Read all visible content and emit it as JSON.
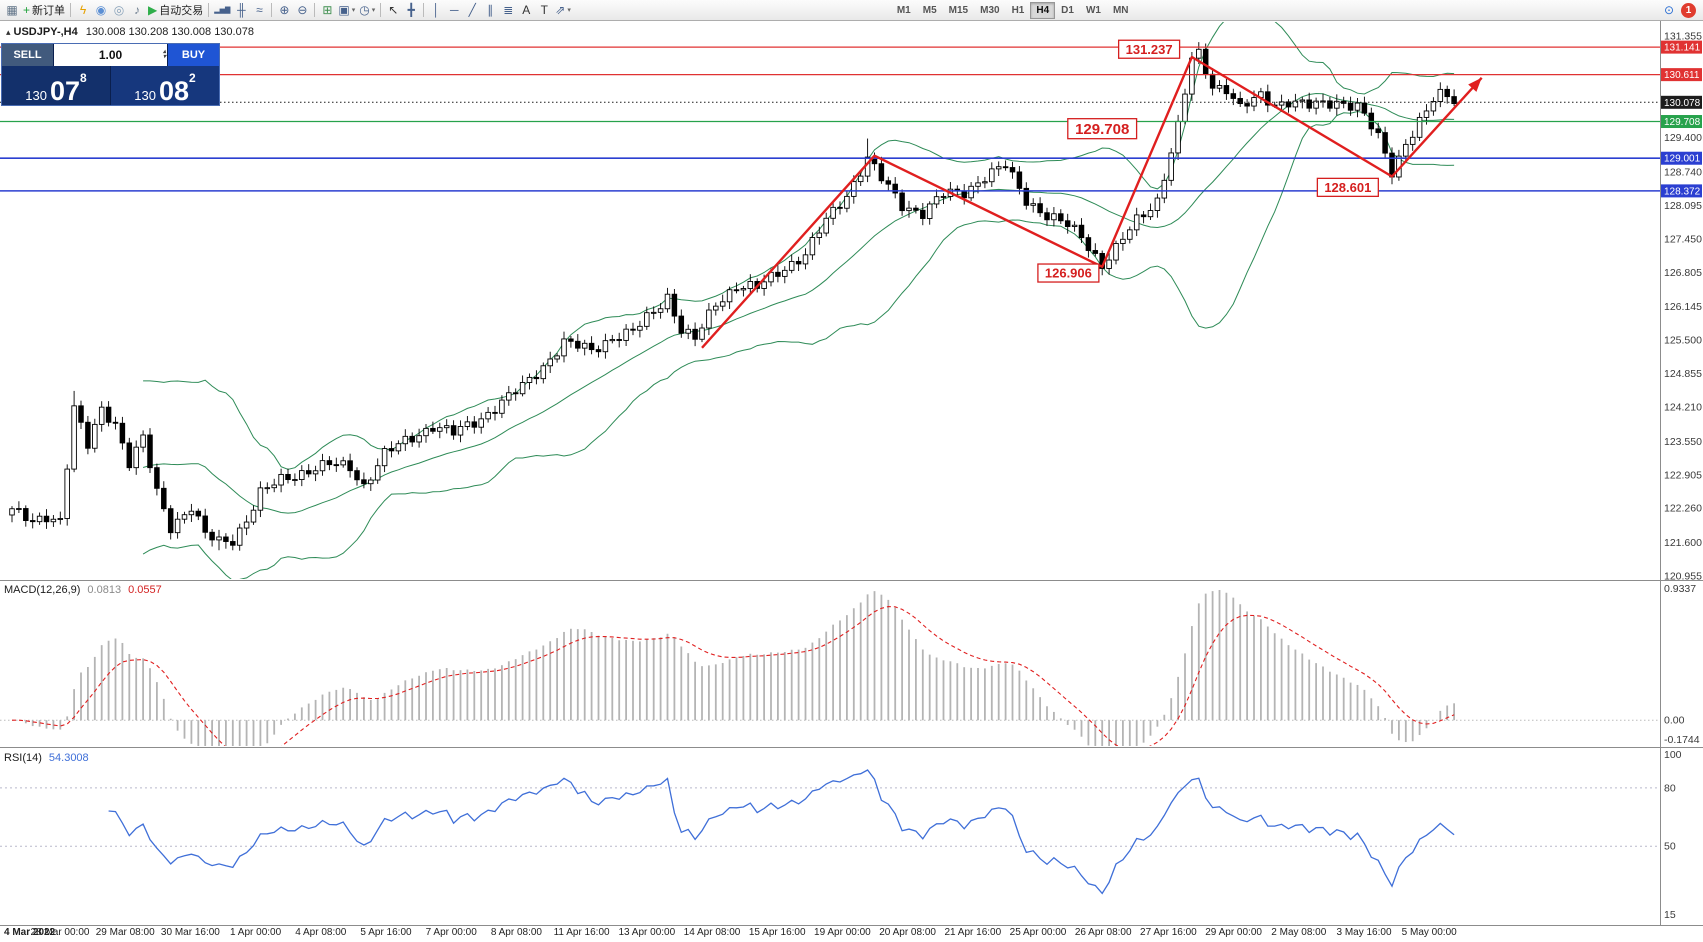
{
  "toolbar": {
    "new_order_label": "新订单",
    "auto_trading_label": "自动交易",
    "timeframes": [
      "M1",
      "M5",
      "M15",
      "M30",
      "H1",
      "H4",
      "D1",
      "W1",
      "MN"
    ],
    "active_timeframe": "H4",
    "notification_count": "1",
    "icons": [
      {
        "name": "new-chart-icon",
        "glyph": "▦",
        "color": "#5f7286"
      },
      {
        "name": "new-order-button",
        "glyph": "+",
        "color": "#1fa23a",
        "label": "新订单"
      },
      {
        "name": "sep"
      },
      {
        "name": "quick-trade-icon",
        "glyph": "ϟ",
        "color": "#e6a100"
      },
      {
        "name": "market-icon",
        "glyph": "◉",
        "color": "#5b8fd4"
      },
      {
        "name": "community-icon",
        "glyph": "◎",
        "color": "#86a0b8"
      },
      {
        "name": "sound-icon",
        "glyph": "♪",
        "color": "#6f7f90"
      },
      {
        "name": "auto-trading-button",
        "glyph": "▶",
        "color": "#2fae4a",
        "label": "自动交易"
      },
      {
        "name": "sep"
      },
      {
        "name": "bar-chart-icon",
        "glyph": "▂▅▇",
        "color": "#46618c",
        "small": true
      },
      {
        "name": "candle-chart-icon",
        "glyph": "╫",
        "color": "#46618c"
      },
      {
        "name": "line-chart-icon",
        "glyph": "≈",
        "color": "#46618c"
      },
      {
        "name": "sep"
      },
      {
        "name": "zoom-in-icon",
        "glyph": "⊕",
        "color": "#46618c"
      },
      {
        "name": "zoom-out-icon",
        "glyph": "⊖",
        "color": "#46618c"
      },
      {
        "name": "sep"
      },
      {
        "name": "tile-windows-icon",
        "glyph": "⊞",
        "color": "#3f8f4f"
      },
      {
        "name": "arrange-windows-icon",
        "glyph": "▣",
        "color": "#46618c",
        "dd": true
      },
      {
        "name": "period-icon",
        "glyph": "◷",
        "color": "#46618c",
        "dd": true
      },
      {
        "name": "sep"
      },
      {
        "name": "cursor-icon",
        "glyph": "↖",
        "color": "#333333"
      },
      {
        "name": "crosshair-icon",
        "glyph": "╋",
        "color": "#46618c"
      },
      {
        "name": "sep"
      },
      {
        "name": "vertical-line-icon",
        "glyph": "│",
        "color": "#46618c"
      },
      {
        "name": "horizontal-line-icon",
        "glyph": "─",
        "color": "#46618c"
      },
      {
        "name": "trendline-icon",
        "glyph": "╱",
        "color": "#46618c"
      },
      {
        "name": "channel-icon",
        "glyph": "∥",
        "color": "#46618c"
      },
      {
        "name": "fibonacci-icon",
        "glyph": "≣",
        "color": "#46618c"
      },
      {
        "name": "text-tool-icon",
        "glyph": "A",
        "color": "#333333"
      },
      {
        "name": "label-tool-icon",
        "glyph": "T",
        "color": "#333333"
      },
      {
        "name": "arrows-tool-icon",
        "glyph": "⇗",
        "color": "#46618c",
        "dd": true
      }
    ]
  },
  "trade_panel": {
    "sell_label": "SELL",
    "buy_label": "BUY",
    "volume": "1.00",
    "sell_small": "130",
    "sell_big": "07",
    "sell_sup": "8",
    "buy_small": "130",
    "buy_big": "08",
    "buy_sup": "2"
  },
  "chart_header": {
    "symbol_tf": "USDJPY-,H4",
    "quotes": "130.008 130.208 130.008 130.078"
  },
  "macd_header": {
    "name": "MACD(12,26,9)",
    "main": "0.0813",
    "signal": "0.0557"
  },
  "rsi_header": {
    "name": "RSI(14)",
    "value": "54.3008"
  },
  "chart_data": {
    "type": "candlestick",
    "symbol": "USDJPY",
    "timeframe": "H4",
    "candles_count": 210,
    "price_range": {
      "max": 131.355,
      "min": 120.955
    },
    "close_waypoints": [
      [
        0,
        122.25
      ],
      [
        3,
        121.95
      ],
      [
        5,
        122.1
      ],
      [
        7,
        122.05
      ],
      [
        9,
        124.2
      ],
      [
        11,
        123.45
      ],
      [
        13,
        124.15
      ],
      [
        15,
        123.9
      ],
      [
        17,
        123.15
      ],
      [
        19,
        123.6
      ],
      [
        21,
        122.55
      ],
      [
        23,
        121.9
      ],
      [
        26,
        122.3
      ],
      [
        28,
        121.75
      ],
      [
        30,
        121.6
      ],
      [
        32,
        121.65
      ],
      [
        34,
        122.05
      ],
      [
        36,
        122.55
      ],
      [
        39,
        122.8
      ],
      [
        43,
        123.0
      ],
      [
        46,
        123.1
      ],
      [
        49,
        123.05
      ],
      [
        51,
        122.7
      ],
      [
        54,
        123.3
      ],
      [
        57,
        123.55
      ],
      [
        61,
        123.85
      ],
      [
        64,
        123.7
      ],
      [
        68,
        124.0
      ],
      [
        71,
        124.3
      ],
      [
        74,
        124.6
      ],
      [
        77,
        125.0
      ],
      [
        80,
        125.45
      ],
      [
        84,
        125.3
      ],
      [
        87,
        125.55
      ],
      [
        90,
        125.65
      ],
      [
        93,
        126.05
      ],
      [
        95,
        126.35
      ],
      [
        97,
        125.7
      ],
      [
        99,
        125.5
      ],
      [
        102,
        126.2
      ],
      [
        105,
        126.55
      ],
      [
        108,
        126.5
      ],
      [
        112,
        126.9
      ],
      [
        115,
        127.15
      ],
      [
        118,
        127.8
      ],
      [
        121,
        128.3
      ],
      [
        124,
        129.0
      ],
      [
        126,
        128.6
      ],
      [
        129,
        128.1
      ],
      [
        132,
        127.95
      ],
      [
        135,
        128.3
      ],
      [
        138,
        128.35
      ],
      [
        141,
        128.65
      ],
      [
        144,
        128.85
      ],
      [
        147,
        128.2
      ],
      [
        150,
        127.9
      ],
      [
        153,
        127.7
      ],
      [
        155,
        127.5
      ],
      [
        158,
        126.95
      ],
      [
        160,
        127.25
      ],
      [
        163,
        127.8
      ],
      [
        166,
        128.2
      ],
      [
        169,
        129.6
      ],
      [
        171,
        130.9
      ],
      [
        172,
        131.0
      ],
      [
        174,
        130.4
      ],
      [
        176,
        130.35
      ],
      [
        178,
        129.95
      ],
      [
        181,
        130.2
      ],
      [
        183,
        130.05
      ],
      [
        185,
        130.1
      ],
      [
        188,
        130.0
      ],
      [
        192,
        130.1
      ],
      [
        195,
        130.0
      ],
      [
        198,
        129.4
      ],
      [
        200,
        128.75
      ],
      [
        202,
        129.3
      ],
      [
        205,
        129.9
      ],
      [
        207,
        130.3
      ],
      [
        209,
        130.08
      ]
    ],
    "spike_highs": [
      [
        9,
        124.52
      ],
      [
        95,
        126.45
      ],
      [
        124,
        129.38
      ],
      [
        172,
        131.237
      ]
    ],
    "spike_lows": [
      [
        30,
        121.45
      ],
      [
        158,
        126.906
      ],
      [
        200,
        128.601
      ]
    ],
    "price_axis_plain": [
      131.355,
      129.4,
      128.74,
      128.095,
      127.45,
      126.805,
      126.145,
      125.5,
      124.855,
      124.21,
      123.55,
      122.905,
      122.26,
      121.6,
      120.955
    ],
    "price_badges": [
      {
        "value": 131.141,
        "color": "#e03232",
        "line": "solid",
        "lw": 1.2
      },
      {
        "value": 130.611,
        "color": "#e03232",
        "line": "solid",
        "lw": 1.2
      },
      {
        "value": 130.078,
        "color": "#1c1c1c",
        "line": "dotted",
        "lw": 1
      },
      {
        "value": 129.708,
        "color": "#27a24c",
        "line": "solid",
        "lw": 1.3
      },
      {
        "value": 129.001,
        "color": "#2b3fd1",
        "line": "solid",
        "lw": 1.6
      },
      {
        "value": 128.372,
        "color": "#2b3fd1",
        "line": "solid",
        "lw": 1.6
      }
    ],
    "bollinger": {
      "period": 20,
      "deviation": 2,
      "color": "#2e8b57"
    },
    "trendline": {
      "color": "#e01f1f",
      "points": [
        [
          100,
          125.35
        ],
        [
          125,
          129.05
        ],
        [
          158,
          126.91
        ],
        [
          171,
          130.95
        ],
        [
          200,
          128.65
        ],
        [
          213,
          130.55
        ]
      ]
    },
    "annotations": [
      {
        "text": "131.237",
        "i": 164.8,
        "price": 131.1,
        "size": 13
      },
      {
        "text": "129.708",
        "i": 158,
        "price": 129.57,
        "size": 15
      },
      {
        "text": "126.906",
        "i": 153.1,
        "price": 126.79,
        "size": 13
      },
      {
        "text": "128.601",
        "i": 193.6,
        "price": 128.44,
        "size": 13
      }
    ],
    "macd": {
      "params": "12,26,9",
      "axis_values": [
        0.9337,
        0,
        -0.1744
      ],
      "axis_labels": [
        "0.9337",
        "0.00",
        "-0.1744"
      ],
      "hist_color": "#b4b4b4",
      "signal_color": "#e02020"
    },
    "rsi": {
      "period": 14,
      "axis_values": [
        100,
        80,
        50,
        15
      ],
      "levels": [
        80,
        50
      ],
      "color": "#3f6fd8"
    },
    "time_axis": [
      "4 Mar 2022",
      "28 Mar 00:00",
      "29 Mar 08:00",
      "30 Mar 16:00",
      "1 Apr 00:00",
      "4 Apr 08:00",
      "5 Apr 16:00",
      "7 Apr 00:00",
      "8 Apr 08:00",
      "11 Apr 16:00",
      "13 Apr 00:00",
      "14 Apr 08:00",
      "15 Apr 16:00",
      "19 Apr 00:00",
      "20 Apr 08:00",
      "21 Apr 16:00",
      "25 Apr 00:00",
      "26 Apr 08:00",
      "27 Apr 16:00",
      "29 Apr 00:00",
      "2 May 08:00",
      "3 May 16:00",
      "5 May 00:00"
    ]
  }
}
